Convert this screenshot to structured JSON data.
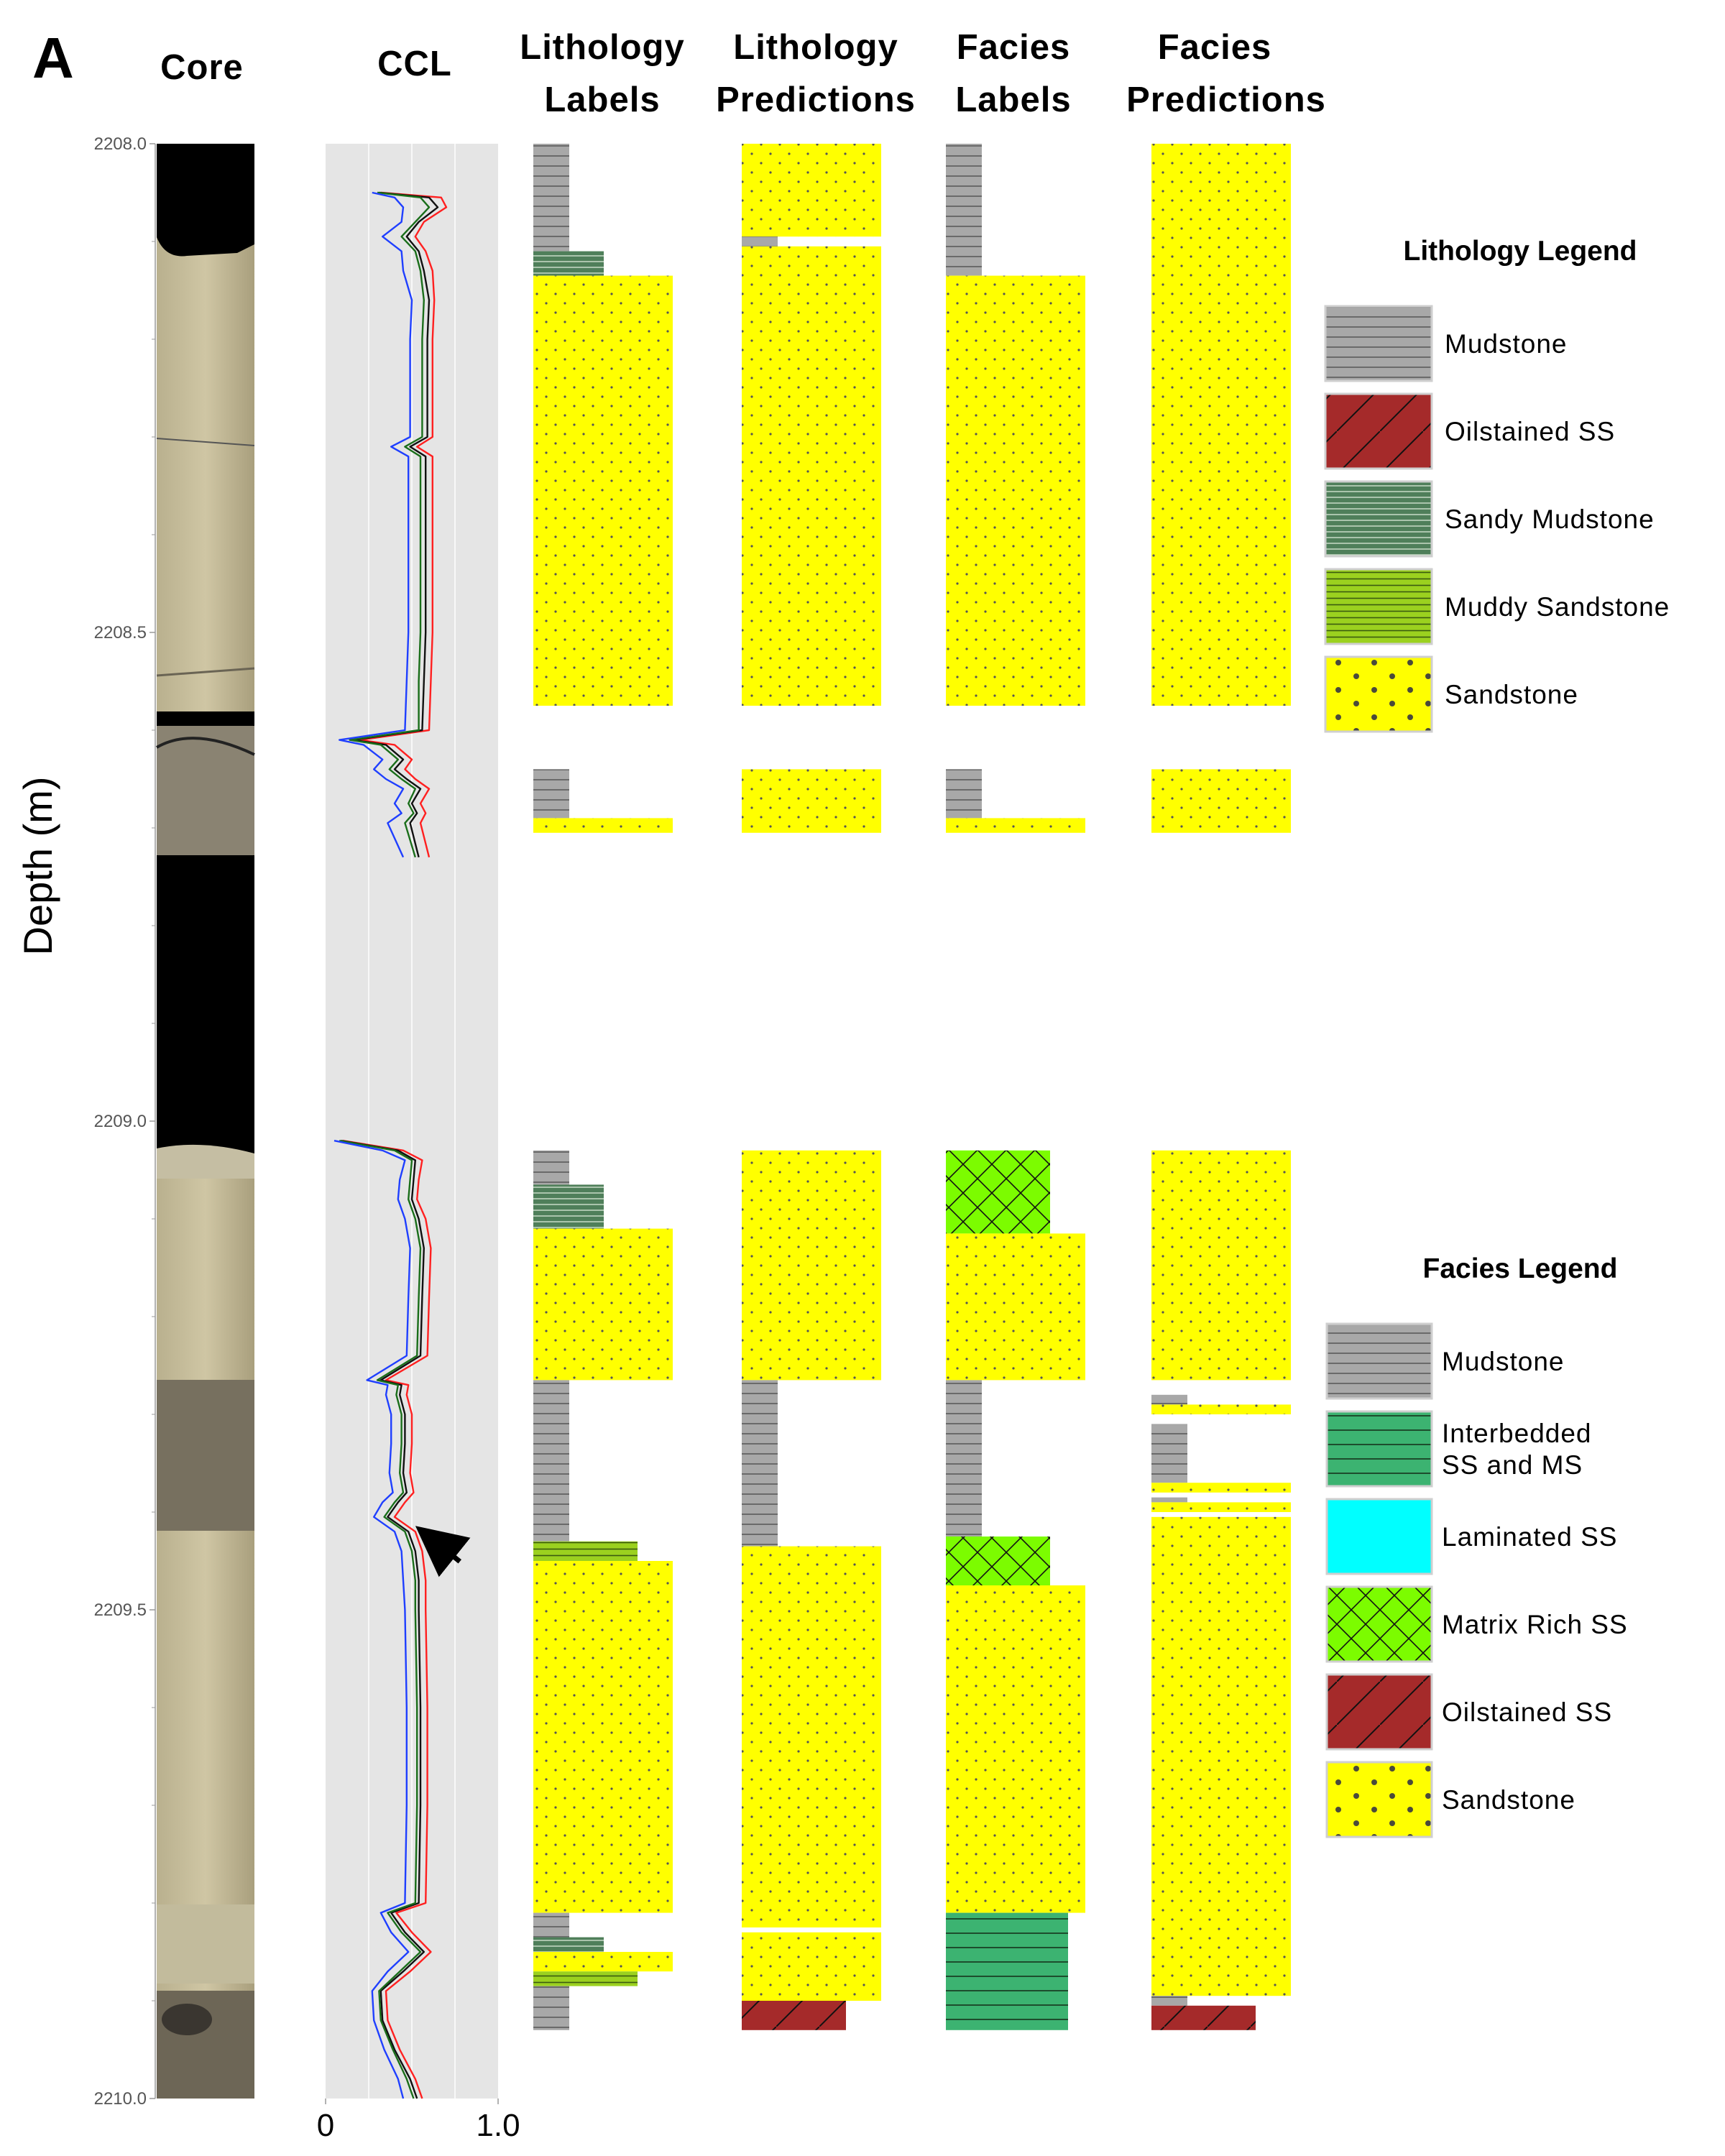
{
  "panel_label": "A",
  "headers": {
    "core": "Core",
    "ccl": "CCL",
    "lith_labels": [
      "Lithology",
      "Labels"
    ],
    "lith_pred": [
      "Lithology",
      "Predictions"
    ],
    "fac_labels": [
      "Facies",
      "Labels"
    ],
    "fac_pred": [
      "Facies",
      "Predictions"
    ]
  },
  "chart_data": {
    "type": "area",
    "ylabel": "Depth (m)",
    "ylim": [
      2208.0,
      2210.0
    ],
    "y_ticks": [
      "2208.0",
      "2208.5",
      "2209.0",
      "2209.5",
      "2210.0"
    ],
    "ccl_xlim": [
      0,
      1.0
    ],
    "ccl_x_ticks": [
      "0",
      "1.0"
    ],
    "colors": {
      "mudstone": "#a8a8a8",
      "oilstained_ss": "#a52a2a",
      "sandy_mudstone": "#4f7f5a",
      "muddy_sandstone": "#9bd11f",
      "sandstone": "#ffff00",
      "interbedded": "#3cb371",
      "laminated_ss": "#00ffff",
      "matrix_rich_ss": "#7cfc00",
      "ccl_panel_bg": "#e5e5e5",
      "ccl_blue": "#1f3fff",
      "ccl_green": "#1a6e1a",
      "ccl_black": "#111111",
      "ccl_red": "#ff2020"
    },
    "lithology_legend": {
      "title": "Lithology Legend",
      "items": [
        {
          "key": "mudstone",
          "label": "Mudstone"
        },
        {
          "key": "oilstained_ss",
          "label": "Oilstained SS"
        },
        {
          "key": "sandy_mudstone",
          "label": "Sandy Mudstone"
        },
        {
          "key": "muddy_sandstone",
          "label": "Muddy Sandstone"
        },
        {
          "key": "sandstone",
          "label": "Sandstone"
        }
      ]
    },
    "facies_legend": {
      "title": "Facies Legend",
      "items": [
        {
          "key": "mudstone",
          "label": "Mudstone"
        },
        {
          "key": "interbedded",
          "label": "Interbedded SS and MS"
        },
        {
          "key": "laminated_ss",
          "label": "Laminated SS"
        },
        {
          "key": "matrix_rich_ss",
          "label": "Matrix Rich SS"
        },
        {
          "key": "oilstained_ss",
          "label": "Oilstained SS"
        },
        {
          "key": "sandstone",
          "label": "Sandstone"
        }
      ]
    },
    "lithology_labels": [
      {
        "top": 2208.0,
        "bottom": 2208.11,
        "class": "mudstone"
      },
      {
        "top": 2208.11,
        "bottom": 2208.135,
        "class": "sandy_mudstone"
      },
      {
        "top": 2208.135,
        "bottom": 2208.575,
        "class": "sandstone"
      },
      {
        "top": 2208.64,
        "bottom": 2208.69,
        "class": "mudstone"
      },
      {
        "top": 2208.69,
        "bottom": 2208.705,
        "class": "sandstone"
      },
      {
        "top": 2209.03,
        "bottom": 2209.065,
        "class": "mudstone"
      },
      {
        "top": 2209.065,
        "bottom": 2209.11,
        "class": "sandy_mudstone"
      },
      {
        "top": 2209.11,
        "bottom": 2209.265,
        "class": "sandstone"
      },
      {
        "top": 2209.265,
        "bottom": 2209.43,
        "class": "mudstone"
      },
      {
        "top": 2209.43,
        "bottom": 2209.45,
        "class": "muddy_sandstone"
      },
      {
        "top": 2209.45,
        "bottom": 2209.81,
        "class": "sandstone"
      },
      {
        "top": 2209.81,
        "bottom": 2209.835,
        "class": "mudstone"
      },
      {
        "top": 2209.835,
        "bottom": 2209.85,
        "class": "sandy_mudstone"
      },
      {
        "top": 2209.85,
        "bottom": 2209.87,
        "class": "sandstone"
      },
      {
        "top": 2209.87,
        "bottom": 2209.885,
        "class": "muddy_sandstone"
      },
      {
        "top": 2209.885,
        "bottom": 2209.93,
        "class": "mudstone"
      }
    ],
    "lithology_predictions": [
      {
        "top": 2208.0,
        "bottom": 2208.095,
        "class": "sandstone"
      },
      {
        "top": 2208.095,
        "bottom": 2208.105,
        "class": "mudstone"
      },
      {
        "top": 2208.105,
        "bottom": 2208.575,
        "class": "sandstone"
      },
      {
        "top": 2208.64,
        "bottom": 2208.705,
        "class": "sandstone"
      },
      {
        "top": 2209.03,
        "bottom": 2209.265,
        "class": "sandstone"
      },
      {
        "top": 2209.265,
        "bottom": 2209.435,
        "class": "mudstone"
      },
      {
        "top": 2209.435,
        "bottom": 2209.825,
        "class": "sandstone"
      },
      {
        "top": 2209.83,
        "bottom": 2209.9,
        "class": "sandstone"
      },
      {
        "top": 2209.9,
        "bottom": 2209.93,
        "class": "oilstained_ss"
      }
    ],
    "facies_labels": [
      {
        "top": 2208.0,
        "bottom": 2208.135,
        "class": "mudstone"
      },
      {
        "top": 2208.135,
        "bottom": 2208.575,
        "class": "sandstone"
      },
      {
        "top": 2208.64,
        "bottom": 2208.69,
        "class": "mudstone"
      },
      {
        "top": 2208.69,
        "bottom": 2208.705,
        "class": "sandstone"
      },
      {
        "top": 2209.03,
        "bottom": 2209.115,
        "class": "matrix_rich_ss"
      },
      {
        "top": 2209.115,
        "bottom": 2209.265,
        "class": "sandstone"
      },
      {
        "top": 2209.265,
        "bottom": 2209.425,
        "class": "mudstone"
      },
      {
        "top": 2209.425,
        "bottom": 2209.475,
        "class": "matrix_rich_ss"
      },
      {
        "top": 2209.475,
        "bottom": 2209.81,
        "class": "sandstone"
      },
      {
        "top": 2209.81,
        "bottom": 2209.93,
        "class": "interbedded"
      }
    ],
    "facies_predictions": [
      {
        "top": 2208.0,
        "bottom": 2208.575,
        "class": "sandstone"
      },
      {
        "top": 2208.64,
        "bottom": 2208.705,
        "class": "sandstone"
      },
      {
        "top": 2209.03,
        "bottom": 2209.265,
        "class": "sandstone"
      },
      {
        "top": 2209.28,
        "bottom": 2209.29,
        "class": "mudstone"
      },
      {
        "top": 2209.29,
        "bottom": 2209.3,
        "class": "sandstone"
      },
      {
        "top": 2209.31,
        "bottom": 2209.37,
        "class": "mudstone"
      },
      {
        "top": 2209.37,
        "bottom": 2209.38,
        "class": "sandstone"
      },
      {
        "top": 2209.385,
        "bottom": 2209.39,
        "class": "mudstone"
      },
      {
        "top": 2209.39,
        "bottom": 2209.4,
        "class": "sandstone"
      },
      {
        "top": 2209.405,
        "bottom": 2209.425,
        "class": "sandstone"
      },
      {
        "top": 2209.425,
        "bottom": 2209.895,
        "class": "sandstone"
      },
      {
        "top": 2209.895,
        "bottom": 2209.905,
        "class": "mudstone"
      },
      {
        "top": 2209.905,
        "bottom": 2209.93,
        "class": "oilstained_ss"
      }
    ],
    "ccl_segments": [
      {
        "depth": [
          2208.05,
          2208.055,
          2208.065,
          2208.08,
          2208.095,
          2208.11,
          2208.13,
          2208.16,
          2208.2,
          2208.25,
          2208.3,
          2208.31,
          2208.32,
          2208.35,
          2208.4,
          2208.45,
          2208.5,
          2208.55,
          2208.6,
          2208.61,
          2208.615,
          2208.63,
          2208.64,
          2208.65,
          2208.66,
          2208.675,
          2208.685,
          2208.695,
          2208.73
        ],
        "series": [
          {
            "name": "blue",
            "values": [
              0.27,
              0.4,
              0.45,
              0.44,
              0.33,
              0.44,
              0.45,
              0.5,
              0.49,
              0.49,
              0.49,
              0.38,
              0.48,
              0.48,
              0.48,
              0.48,
              0.48,
              0.47,
              0.46,
              0.08,
              0.22,
              0.33,
              0.28,
              0.35,
              0.45,
              0.4,
              0.44,
              0.36,
              0.45
            ]
          },
          {
            "name": "green",
            "values": [
              0.3,
              0.55,
              0.6,
              0.52,
              0.44,
              0.52,
              0.55,
              0.57,
              0.56,
              0.56,
              0.56,
              0.46,
              0.55,
              0.55,
              0.55,
              0.55,
              0.55,
              0.54,
              0.54,
              0.14,
              0.32,
              0.42,
              0.37,
              0.44,
              0.52,
              0.48,
              0.51,
              0.46,
              0.52
            ]
          },
          {
            "name": "black",
            "values": [
              0.31,
              0.6,
              0.65,
              0.54,
              0.47,
              0.54,
              0.57,
              0.6,
              0.59,
              0.59,
              0.59,
              0.49,
              0.58,
              0.58,
              0.58,
              0.58,
              0.58,
              0.57,
              0.56,
              0.16,
              0.35,
              0.45,
              0.4,
              0.47,
              0.55,
              0.5,
              0.53,
              0.49,
              0.54
            ]
          },
          {
            "name": "red",
            "values": [
              0.32,
              0.67,
              0.7,
              0.57,
              0.52,
              0.58,
              0.62,
              0.63,
              0.62,
              0.62,
              0.62,
              0.53,
              0.62,
              0.62,
              0.62,
              0.62,
              0.62,
              0.61,
              0.6,
              0.2,
              0.4,
              0.5,
              0.46,
              0.52,
              0.6,
              0.55,
              0.58,
              0.55,
              0.6
            ]
          }
        ]
      },
      {
        "depth": [
          2209.02,
          2209.03,
          2209.04,
          2209.06,
          2209.08,
          2209.1,
          2209.13,
          2209.18,
          2209.24,
          2209.265,
          2209.27,
          2209.28,
          2209.3,
          2209.33,
          2209.36,
          2209.38,
          2209.39,
          2209.405,
          2209.42,
          2209.44,
          2209.47,
          2209.5,
          2209.6,
          2209.7,
          2209.8,
          2209.81,
          2209.83,
          2209.85,
          2209.87,
          2209.89,
          2209.92,
          2209.95,
          2209.98,
          2210.0
        ],
        "series": [
          {
            "name": "blue",
            "values": [
              0.05,
              0.33,
              0.46,
              0.43,
              0.42,
              0.46,
              0.49,
              0.48,
              0.47,
              0.24,
              0.36,
              0.35,
              0.38,
              0.38,
              0.37,
              0.39,
              0.33,
              0.28,
              0.4,
              0.44,
              0.45,
              0.46,
              0.47,
              0.47,
              0.46,
              0.32,
              0.38,
              0.48,
              0.36,
              0.27,
              0.28,
              0.34,
              0.42,
              0.45
            ]
          },
          {
            "name": "green",
            "values": [
              0.08,
              0.4,
              0.5,
              0.49,
              0.48,
              0.52,
              0.55,
              0.54,
              0.53,
              0.3,
              0.42,
              0.41,
              0.44,
              0.44,
              0.43,
              0.45,
              0.4,
              0.34,
              0.46,
              0.5,
              0.52,
              0.52,
              0.53,
              0.53,
              0.52,
              0.36,
              0.44,
              0.55,
              0.43,
              0.31,
              0.32,
              0.39,
              0.47,
              0.51
            ]
          },
          {
            "name": "black",
            "values": [
              0.09,
              0.42,
              0.52,
              0.51,
              0.5,
              0.54,
              0.57,
              0.56,
              0.55,
              0.32,
              0.44,
              0.43,
              0.46,
              0.46,
              0.45,
              0.47,
              0.42,
              0.36,
              0.48,
              0.52,
              0.54,
              0.54,
              0.55,
              0.55,
              0.54,
              0.38,
              0.46,
              0.57,
              0.45,
              0.32,
              0.33,
              0.4,
              0.49,
              0.53
            ]
          },
          {
            "name": "red",
            "values": [
              0.1,
              0.45,
              0.56,
              0.54,
              0.53,
              0.58,
              0.61,
              0.6,
              0.59,
              0.35,
              0.48,
              0.47,
              0.5,
              0.5,
              0.49,
              0.51,
              0.46,
              0.4,
              0.52,
              0.56,
              0.58,
              0.58,
              0.59,
              0.59,
              0.58,
              0.41,
              0.5,
              0.61,
              0.49,
              0.35,
              0.36,
              0.43,
              0.52,
              0.56
            ]
          }
        ]
      }
    ],
    "annotations": [
      {
        "type": "arrow",
        "depth": 2209.43,
        "ccl_value": 0.52
      }
    ]
  }
}
